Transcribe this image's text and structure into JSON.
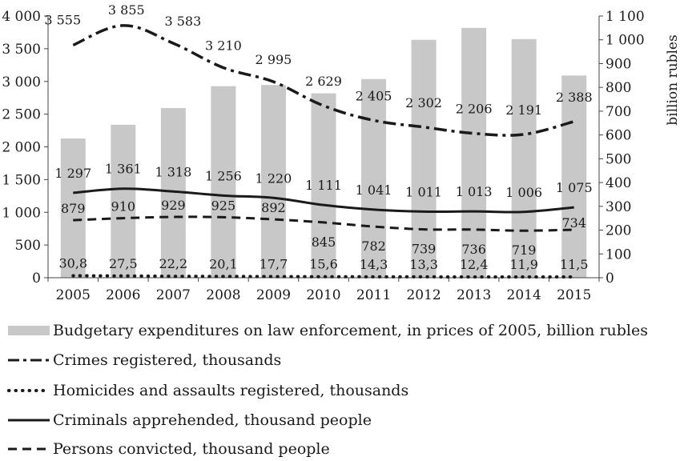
{
  "chart_data": {
    "type": "bar",
    "categories": [
      "2005",
      "2006",
      "2007",
      "2008",
      "2009",
      "2010",
      "2011",
      "2012",
      "2013",
      "2014",
      "2015"
    ],
    "y_left": {
      "ylim": [
        0,
        4000
      ],
      "ticks": [
        "0",
        "500",
        "1 000",
        "1 500",
        "2 000",
        "2 500",
        "3 000",
        "3 500",
        "4 000"
      ],
      "tick_values": [
        0,
        500,
        1000,
        1500,
        2000,
        2500,
        3000,
        3500,
        4000
      ]
    },
    "y_right": {
      "ylim": [
        0,
        1100
      ],
      "label": "billion rubles",
      "ticks": [
        "0",
        "100",
        "200",
        "300",
        "400",
        "500",
        "600",
        "700",
        "800",
        "900",
        "1 000",
        "1 100"
      ],
      "tick_values": [
        0,
        100,
        200,
        300,
        400,
        500,
        600,
        700,
        800,
        900,
        1000,
        1100
      ]
    },
    "series": [
      {
        "name": "Budgetary expenditures on law enforcement, in prices of 2005, billion rubles",
        "kind": "bar",
        "axis": "right",
        "color": "#c8c8c8",
        "values": [
          585,
          643,
          713,
          805,
          810,
          775,
          835,
          1000,
          1050,
          1003,
          850
        ]
      },
      {
        "name": "Crimes registered, thousands",
        "kind": "line",
        "dash": "dashdot",
        "axis": "left",
        "values": [
          3555,
          3855,
          3583,
          3210,
          2995,
          2629,
          2405,
          2302,
          2206,
          2191,
          2388
        ],
        "labels": [
          "3 555",
          "3 855",
          "3 583",
          "3 210",
          "2 995",
          "2 629",
          "2 405",
          "2 302",
          "2 206",
          "2 191",
          "2 388"
        ]
      },
      {
        "name": "Homicides and assaults registered, thousands",
        "kind": "line",
        "dash": "dotted",
        "axis": "left",
        "values": [
          30.8,
          27.5,
          22.2,
          20.1,
          17.7,
          15.6,
          14.3,
          13.3,
          12.4,
          11.9,
          11.5
        ],
        "labels": [
          "30,8",
          "27,5",
          "22,2",
          "20,1",
          "17,7",
          "15,6",
          "14,3",
          "13,3",
          "12,4",
          "11,9",
          "11,5"
        ]
      },
      {
        "name": "Criminals apprehended, thousand people",
        "kind": "line",
        "dash": "solid",
        "axis": "left",
        "values": [
          1297,
          1361,
          1318,
          1256,
          1220,
          1111,
          1041,
          1011,
          1013,
          1006,
          1075
        ],
        "labels": [
          "1 297",
          "1 361",
          "1 318",
          "1 256",
          "1 220",
          "1 111",
          "1 041",
          "1 011",
          "1 013",
          "1 006",
          "1 075"
        ]
      },
      {
        "name": "Persons convicted, thousand people",
        "kind": "line",
        "dash": "dashed",
        "axis": "left",
        "values": [
          879,
          910,
          929,
          925,
          892,
          845,
          782,
          739,
          736,
          719,
          734
        ],
        "labels": [
          "879",
          "910",
          "929",
          "925",
          "892",
          "845",
          "782",
          "739",
          "736",
          "719",
          "734"
        ]
      }
    ],
    "legend_position": "bottom",
    "grid": false
  }
}
